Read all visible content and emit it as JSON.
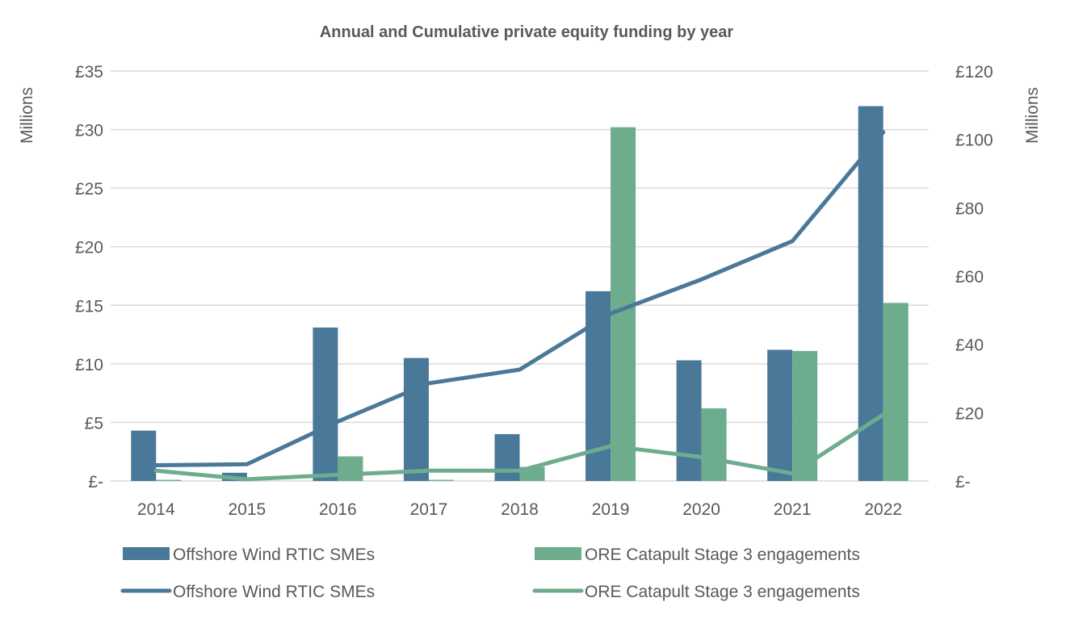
{
  "chart_data": {
    "type": "bar+line",
    "title": "Annual and Cumulative private equity funding by year",
    "categories": [
      "2014",
      "2015",
      "2016",
      "2017",
      "2018",
      "2019",
      "2020",
      "2021",
      "2022"
    ],
    "y_left": {
      "label": "Millions",
      "range": [
        0,
        35
      ],
      "ticks": [
        "£-",
        "£5",
        "£10",
        "£15",
        "£20",
        "£25",
        "£30",
        "£35"
      ],
      "tick_values": [
        0,
        5,
        10,
        15,
        20,
        25,
        30,
        35
      ]
    },
    "y_right": {
      "label": "Millions",
      "range": [
        0,
        120
      ],
      "ticks": [
        "£-",
        "£20",
        "£40",
        "£60",
        "£80",
        "£100",
        "£120"
      ],
      "tick_values": [
        0,
        20,
        40,
        60,
        80,
        100,
        120
      ]
    },
    "grid": true,
    "legend_placement": "bottom",
    "series": [
      {
        "name": "Offshore Wind RTIC SMEs",
        "kind": "bar",
        "axis": "left",
        "color": "#4a7899",
        "values": [
          4.3,
          0.7,
          13.1,
          10.5,
          4.0,
          16.2,
          10.3,
          11.2,
          32.0
        ]
      },
      {
        "name": "ORE Catapult Stage 3 engagements",
        "kind": "bar",
        "axis": "left",
        "color": "#6dad8e",
        "values": [
          0.1,
          0.0,
          2.1,
          0.1,
          1.2,
          30.2,
          6.2,
          11.1,
          15.2
        ]
      },
      {
        "name": "Offshore Wind RTIC SMEs",
        "kind": "line",
        "axis": "right",
        "color": "#4a7899",
        "values": [
          4.6,
          4.9,
          17.4,
          28.6,
          32.6,
          49.0,
          59.0,
          70.2,
          102.1
        ]
      },
      {
        "name": "ORE Catapult Stage 3 engagements",
        "kind": "line",
        "axis": "right",
        "color": "#6dad8e",
        "values": [
          3.0,
          0.5,
          1.8,
          3.0,
          3.0,
          10.2,
          7.0,
          2.2,
          19.4
        ]
      }
    ]
  }
}
